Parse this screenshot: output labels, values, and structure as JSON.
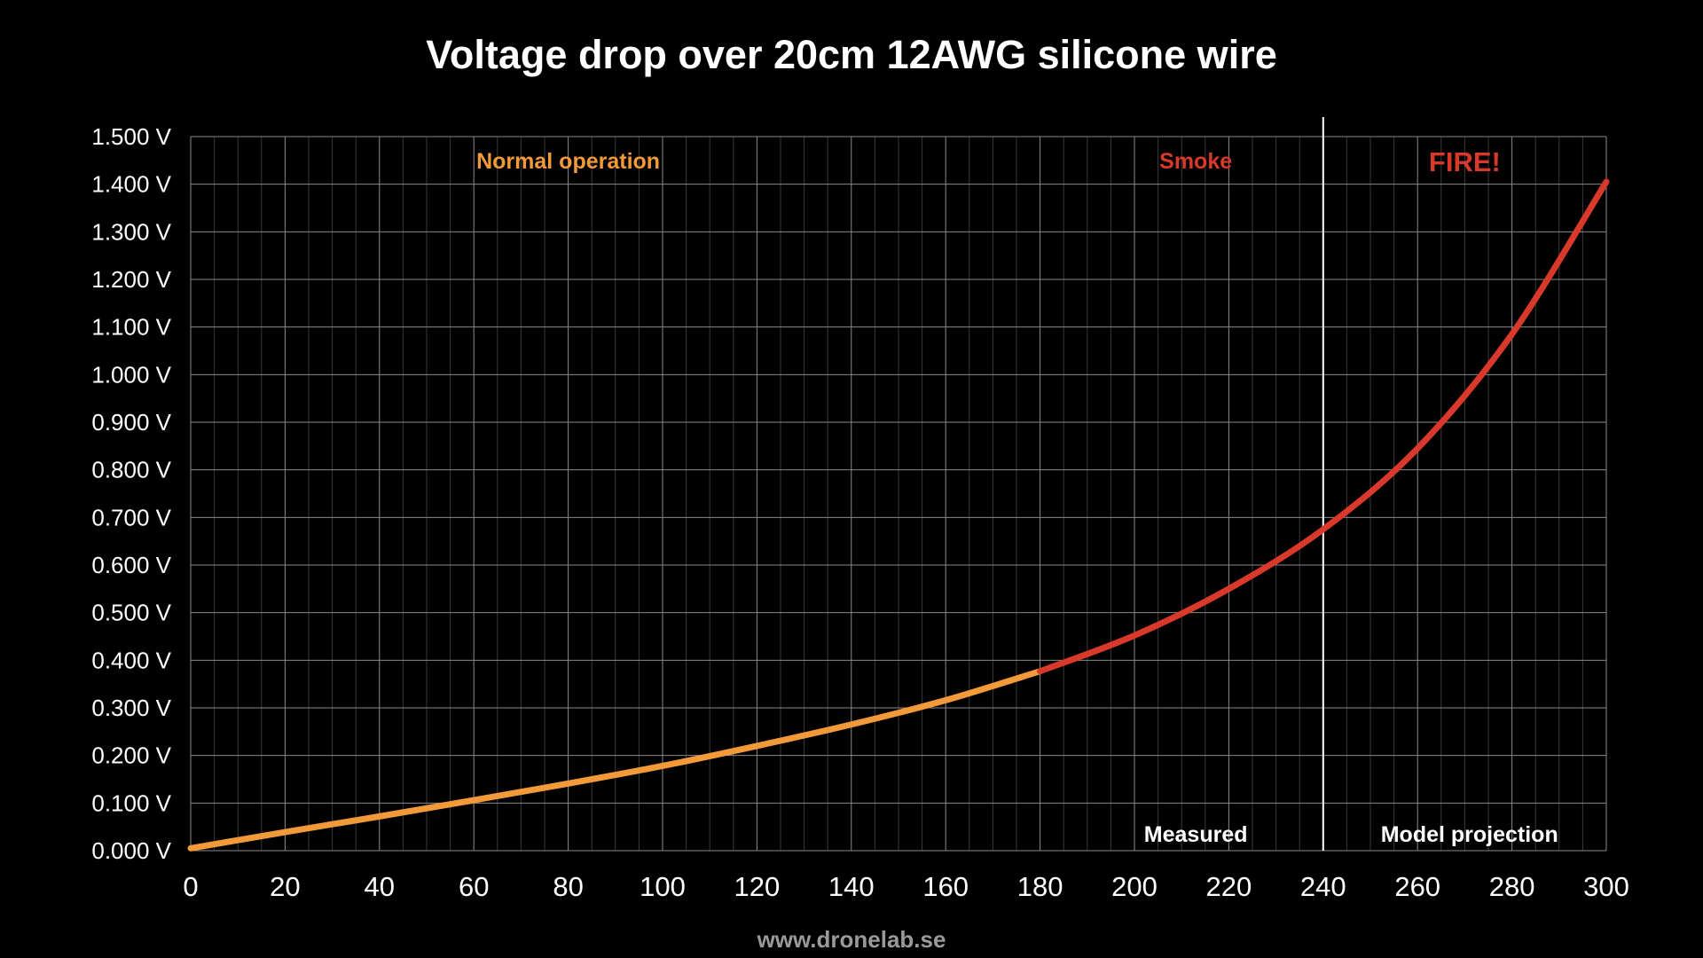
{
  "colors": {
    "background": "#000000",
    "grid_major": "#8a8a8a",
    "grid_minor": "#3a3a3a",
    "divider": "#ffffff",
    "normal": "#f2993a",
    "danger": "#d9392b",
    "text": "#ffffff",
    "footer": "#9a9a9a"
  },
  "footer": {
    "url": "www.dronelab.se"
  },
  "chart_data": {
    "type": "line",
    "title": "Voltage drop over 20cm 12AWG silicone wire",
    "xlabel": "",
    "ylabel": "",
    "xlim": [
      0,
      300
    ],
    "ylim": [
      0,
      1.5
    ],
    "x_ticks": [
      "0",
      "20",
      "40",
      "60",
      "80",
      "100",
      "120",
      "140",
      "160",
      "180",
      "200",
      "220",
      "240",
      "260",
      "280",
      "300"
    ],
    "y_ticks": [
      "0.000 V",
      "0.100 V",
      "0.200 V",
      "0.300 V",
      "0.400 V",
      "0.500 V",
      "0.600 V",
      "0.700 V",
      "0.800 V",
      "0.900 V",
      "1.000 V",
      "1.100 V",
      "1.200 V",
      "1.300 V",
      "1.400 V",
      "1.500 V"
    ],
    "grid": true,
    "series": [
      {
        "color": "#f2993a",
        "x": [
          0,
          20,
          40,
          60,
          80,
          100,
          120,
          140,
          160,
          180
        ],
        "y": [
          0.005,
          0.039,
          0.072,
          0.106,
          0.141,
          0.178,
          0.22,
          0.265,
          0.316,
          0.377
        ]
      },
      {
        "color": "#d9392b",
        "x": [
          180,
          200,
          220,
          240,
          260,
          280,
          300
        ],
        "y": [
          0.377,
          0.452,
          0.55,
          0.675,
          0.845,
          1.085,
          1.405
        ]
      }
    ],
    "region_labels": [
      {
        "text": "Normal operation",
        "x": 80,
        "y": 1.45,
        "color": "#f2993a"
      },
      {
        "text": "Smoke",
        "x": 213,
        "y": 1.45,
        "color": "#d9392b"
      },
      {
        "text": "FIRE!",
        "x": 270,
        "y": 1.45,
        "color": "#d9392b"
      },
      {
        "text": "Measured",
        "x": 213,
        "y": 0.035,
        "color": "#ffffff"
      },
      {
        "text": "Model projection",
        "x": 271,
        "y": 0.035,
        "color": "#ffffff"
      }
    ],
    "divider_x": 240
  }
}
